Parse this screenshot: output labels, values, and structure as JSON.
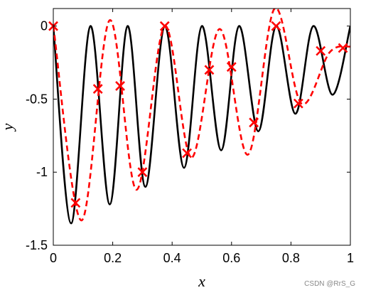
{
  "chart_data": {
    "type": "line",
    "title": "",
    "xlabel": "x",
    "ylabel": "y",
    "xlim": [
      0,
      1
    ],
    "ylim": [
      -1.5,
      0.12
    ],
    "xticks": [
      0,
      0.2,
      0.4,
      0.6,
      0.8,
      1
    ],
    "xtick_labels": [
      "0",
      "0.2",
      "0.4",
      "0.6",
      "0.8",
      "1"
    ],
    "yticks": [
      0,
      -0.5,
      -1,
      -1.5
    ],
    "ytick_labels": [
      "0",
      "-0.5",
      "-1",
      "-1.5"
    ],
    "grid": false,
    "legend": "none",
    "series": [
      {
        "style": "solid",
        "color": "#000000",
        "x": [
          0,
          0.06,
          0.125,
          0.19,
          0.25,
          0.31,
          0.375,
          0.44,
          0.5,
          0.565,
          0.625,
          0.69,
          0.75,
          0.815,
          0.875,
          0.94,
          1.0
        ],
        "y": [
          0,
          -1.35,
          0,
          -1.22,
          0,
          -1.1,
          0,
          -0.97,
          0,
          -0.85,
          0,
          -0.72,
          0,
          -0.6,
          0,
          -0.47,
          0
        ]
      },
      {
        "style": "dashed",
        "color": "#ff0000",
        "x": [
          0,
          0.095,
          0.19,
          0.28,
          0.375,
          0.465,
          0.56,
          0.655,
          0.745,
          0.835,
          0.93,
          1.0
        ],
        "y": [
          0,
          -1.33,
          0.04,
          -1.12,
          0.0,
          -0.9,
          -0.02,
          -0.88,
          0.12,
          -0.53,
          -0.18,
          -0.14
        ]
      },
      {
        "style": "markers",
        "color": "#ff0000",
        "marker": "x",
        "x": [
          0,
          0.075,
          0.15,
          0.225,
          0.3,
          0.375,
          0.45,
          0.525,
          0.6,
          0.675,
          0.75,
          0.825,
          0.9,
          0.975
        ],
        "y": [
          0,
          -1.21,
          -0.43,
          -0.41,
          -1.0,
          0.0,
          -0.87,
          -0.3,
          -0.28,
          -0.66,
          0.0,
          -0.53,
          -0.17,
          -0.15
        ]
      }
    ]
  },
  "watermark": "CSDN @RrS_G"
}
